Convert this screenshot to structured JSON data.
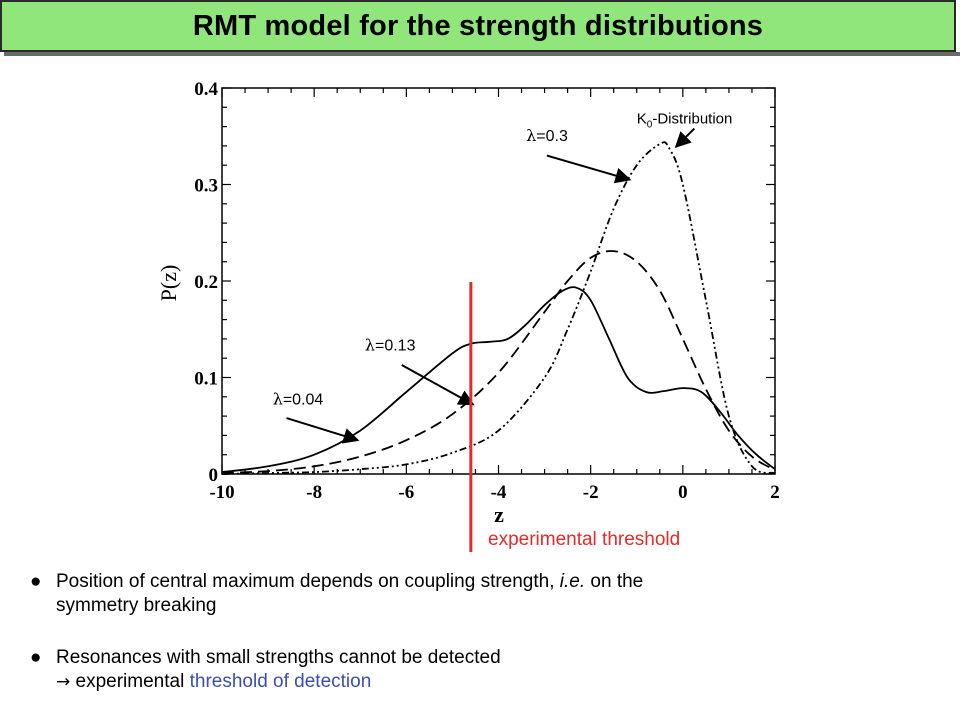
{
  "title": "RMT model for the strength distributions",
  "colors": {
    "title_bg": "#90e67a",
    "threshold": "#e52a2a",
    "highlight": "#3a4eb2"
  },
  "chart_data": {
    "type": "line",
    "xlabel": "z",
    "ylabel": "P(z)",
    "xlim": [
      -10,
      2
    ],
    "ylim": [
      0,
      0.4
    ],
    "xticks": [
      -10,
      -8,
      -6,
      -4,
      -2,
      0,
      2
    ],
    "yticks": [
      0,
      0.1,
      0.2,
      0.3,
      0.4
    ],
    "xtick_labels": [
      "-10",
      "-8",
      "-6",
      "-4",
      "-2",
      "0",
      "2"
    ],
    "ytick_labels": [
      "0",
      "0.1",
      "0.2",
      "0.3",
      "0.4"
    ],
    "series": [
      {
        "name": "λ=0.04",
        "style": "solid",
        "x": [
          -10,
          -9,
          -8,
          -7,
          -6,
          -5,
          -4.6,
          -4.2,
          -3.8,
          -3.4,
          -3.0,
          -2.6,
          -2.3,
          -2.0,
          -1.6,
          -1.2,
          -0.8,
          -0.4,
          0,
          0.4,
          0.8,
          1.2,
          1.6,
          2.0
        ],
        "y": [
          0.002,
          0.008,
          0.02,
          0.045,
          0.085,
          0.125,
          0.135,
          0.137,
          0.14,
          0.155,
          0.175,
          0.19,
          0.193,
          0.18,
          0.14,
          0.1,
          0.085,
          0.086,
          0.089,
          0.085,
          0.065,
          0.04,
          0.02,
          0.005
        ]
      },
      {
        "name": "λ=0.13",
        "style": "dashed",
        "x": [
          -10,
          -9,
          -8,
          -7,
          -6,
          -5,
          -4.0,
          -3.0,
          -2.5,
          -2.0,
          -1.5,
          -1.0,
          -0.5,
          0,
          0.5,
          1.0,
          1.5,
          2.0
        ],
        "y": [
          0.001,
          0.003,
          0.008,
          0.018,
          0.035,
          0.062,
          0.105,
          0.168,
          0.2,
          0.224,
          0.231,
          0.22,
          0.19,
          0.14,
          0.088,
          0.045,
          0.018,
          0.004
        ]
      },
      {
        "name": "λ=0.3",
        "style": "dash-dot",
        "x": [
          -10,
          -9,
          -8,
          -7,
          -6,
          -5,
          -4.0,
          -3.0,
          -2.5,
          -2.0,
          -1.5,
          -1.0,
          -0.5,
          -0.3,
          0,
          0.5,
          1.0,
          1.5,
          2.0
        ],
        "y": [
          0,
          0.001,
          0.002,
          0.005,
          0.01,
          0.022,
          0.045,
          0.1,
          0.15,
          0.21,
          0.275,
          0.32,
          0.342,
          0.338,
          0.3,
          0.18,
          0.06,
          0.008,
          0.001
        ]
      }
    ],
    "annotations": [
      {
        "text_main": "λ",
        "text_rest": "=0.04",
        "label_at": [
          -8.9,
          0.072
        ],
        "arrow_from": [
          -8.6,
          0.058
        ],
        "arrow_to": [
          -7.05,
          0.035
        ]
      },
      {
        "text_main": "λ",
        "text_rest": "=0.13",
        "label_at": [
          -6.9,
          0.128
        ],
        "arrow_from": [
          -6.1,
          0.113
        ],
        "arrow_to": [
          -4.55,
          0.072
        ]
      },
      {
        "text_main": "λ",
        "text_rest": "=0.3",
        "label_at": [
          -3.4,
          0.345
        ],
        "arrow_from": [
          -2.95,
          0.33
        ],
        "arrow_to": [
          -1.15,
          0.305
        ]
      },
      {
        "text_main": "K",
        "text_sub": "0",
        "text_rest": "-Distribution",
        "label_at": [
          -1.0,
          0.363
        ],
        "arrow_from": [
          0.25,
          0.358
        ],
        "arrow_to": [
          -0.15,
          0.339
        ]
      }
    ],
    "threshold": {
      "label": "experimental threshold",
      "x": -4.6
    }
  },
  "bullets": [
    {
      "symbol": "●",
      "text_a": "Position of central maximum depends on coupling strength,",
      "text_ie": "i.e.",
      "text_b": "on the",
      "text_c": "symmetry breaking"
    },
    {
      "symbol": "●",
      "text_a": "Resonances with small strengths cannot be detected",
      "arrow": "→",
      "text_b": "experimental",
      "text_blue": "threshold of detection"
    }
  ]
}
